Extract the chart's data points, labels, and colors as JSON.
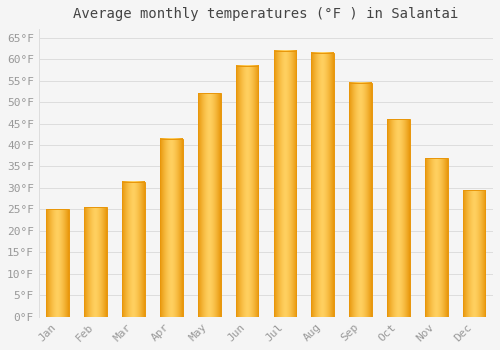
{
  "title": "Average monthly temperatures (°F ) in Salantai",
  "months": [
    "Jan",
    "Feb",
    "Mar",
    "Apr",
    "May",
    "Jun",
    "Jul",
    "Aug",
    "Sep",
    "Oct",
    "Nov",
    "Dec"
  ],
  "values": [
    25,
    25.5,
    31.5,
    41.5,
    52,
    58.5,
    62,
    61.5,
    54.5,
    46,
    37,
    29.5
  ],
  "bar_color": "#FFC125",
  "bar_edge_color": "#E8960A",
  "background_color": "#f5f5f5",
  "grid_color": "#dddddd",
  "ylim": [
    0,
    67
  ],
  "yticks": [
    0,
    5,
    10,
    15,
    20,
    25,
    30,
    35,
    40,
    45,
    50,
    55,
    60,
    65
  ],
  "ytick_labels": [
    "0°F",
    "5°F",
    "10°F",
    "15°F",
    "20°F",
    "25°F",
    "30°F",
    "35°F",
    "40°F",
    "45°F",
    "50°F",
    "55°F",
    "60°F",
    "65°F"
  ],
  "title_fontsize": 10,
  "tick_fontsize": 8,
  "tick_color": "#999999",
  "font_family": "monospace",
  "bar_width": 0.6
}
